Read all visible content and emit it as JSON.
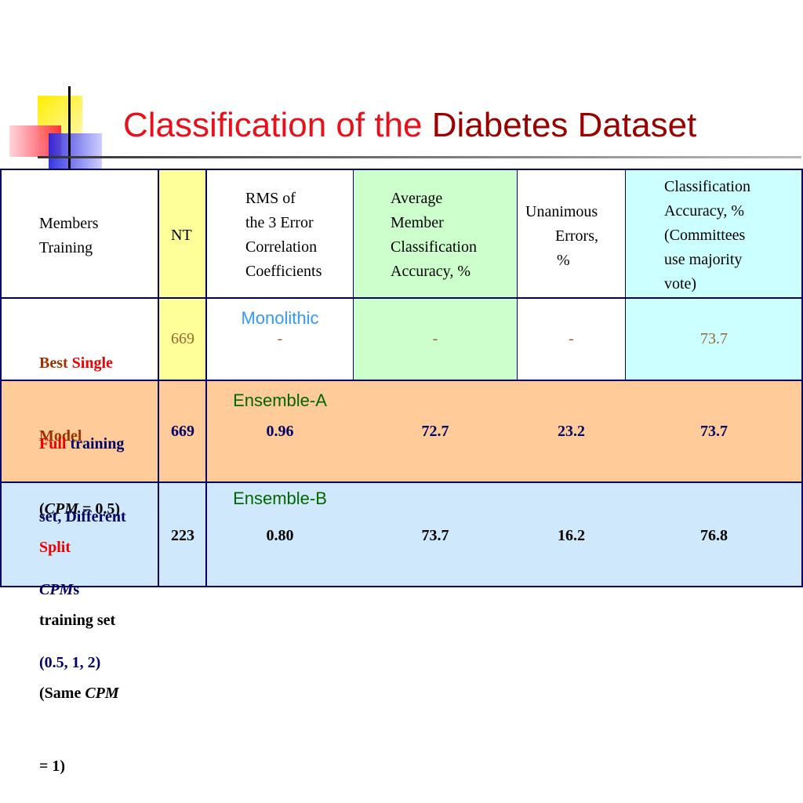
{
  "title": {
    "part1": "Classification of the",
    "part2": "Diabetes Dataset"
  },
  "table": {
    "header": [
      [
        "Members",
        "Training"
      ],
      [
        "NT"
      ],
      [
        "RMS of",
        "the 3 Error",
        "Correlation",
        "Coefficients"
      ],
      [
        "Average",
        "Member",
        "Classification",
        "Accuracy, %"
      ],
      [
        "Unanimous",
        "Errors,",
        "%"
      ],
      [
        "Classification",
        "Accuracy, %",
        "(Committees",
        "use majority",
        "vote)"
      ]
    ],
    "rows": [
      {
        "label": [
          "Best",
          "Single",
          "Model",
          "(",
          "CPM",
          " = 0.5",
          ")"
        ],
        "method": "Monolithic",
        "cells": [
          669,
          "-",
          "-",
          "-",
          73.7
        ]
      },
      {
        "label": [
          "Full",
          "training",
          "set, Different",
          "CPM",
          "s",
          "(0.5, 1, 2)"
        ],
        "method": "Ensemble-A",
        "cells": [
          669,
          0.96,
          72.7,
          23.2,
          73.7
        ]
      },
      {
        "label": [
          "Split",
          "training set",
          "(Same ",
          "CPM",
          "= 1)"
        ],
        "method": "Ensemble-B",
        "cells": [
          223,
          0.8,
          73.7,
          16.2,
          76.8
        ]
      }
    ]
  }
}
